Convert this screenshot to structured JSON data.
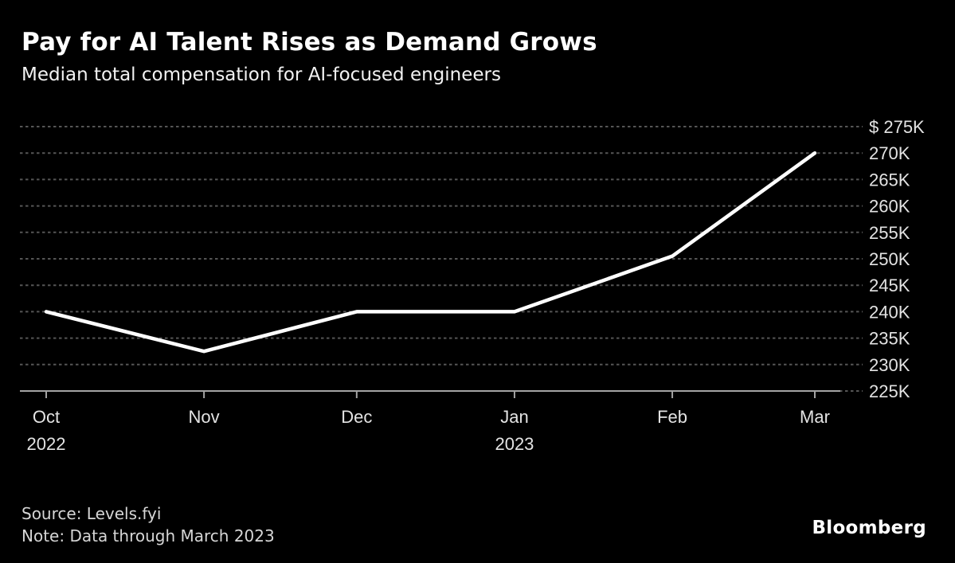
{
  "header": {
    "title": "Pay for AI Talent Rises as Demand Grows",
    "subtitle": "Median total compensation for AI-focused engineers"
  },
  "footer": {
    "source": "Source: Levels.fyi",
    "note": "Note: Data through March 2023",
    "brand": "Bloomberg"
  },
  "colors": {
    "background": "#000000",
    "line": "#ffffff",
    "grid": "#555555",
    "axis": "#a3a3a3",
    "tick_label": "#e3e3e3",
    "title": "#ffffff",
    "subtitle": "#f2f2f2",
    "footnote": "#d6d6d6",
    "brand": "#ffffff"
  },
  "chart_data": {
    "type": "line",
    "title": "Pay for AI Talent Rises as Demand Grows",
    "subtitle": "Median total compensation for AI-focused engineers",
    "unit": "USD thousands per year",
    "categories": [
      "Oct 2022",
      "Nov 2022",
      "Dec 2022",
      "Jan 2023",
      "Feb 2023",
      "Mar 2023"
    ],
    "series": [
      {
        "name": "Median total compensation",
        "values": [
          240,
          232.5,
          240,
          240,
          250.5,
          270
        ]
      }
    ],
    "x_ticks": [
      {
        "label": "Oct",
        "sub": "2022",
        "day": 0
      },
      {
        "label": "Nov",
        "day": 31
      },
      {
        "label": "Dec",
        "day": 61
      },
      {
        "label": "Jan",
        "sub": "2023",
        "day": 92
      },
      {
        "label": "Feb",
        "day": 123
      },
      {
        "label": "Mar",
        "day": 151
      }
    ],
    "x_span_days": 151,
    "y_ticks": [
      {
        "label": "$ 275K",
        "value": 275
      },
      {
        "label": "270K",
        "value": 270
      },
      {
        "label": "265K",
        "value": 265
      },
      {
        "label": "260K",
        "value": 260
      },
      {
        "label": "255K",
        "value": 255
      },
      {
        "label": "250K",
        "value": 250
      },
      {
        "label": "245K",
        "value": 245
      },
      {
        "label": "240K",
        "value": 240
      },
      {
        "label": "235K",
        "value": 235
      },
      {
        "label": "230K",
        "value": 230
      },
      {
        "label": "225K",
        "value": 225
      }
    ],
    "ylim": [
      225,
      275
    ],
    "axis_side": "right",
    "grid": "horizontal dotted",
    "legend": "none"
  }
}
